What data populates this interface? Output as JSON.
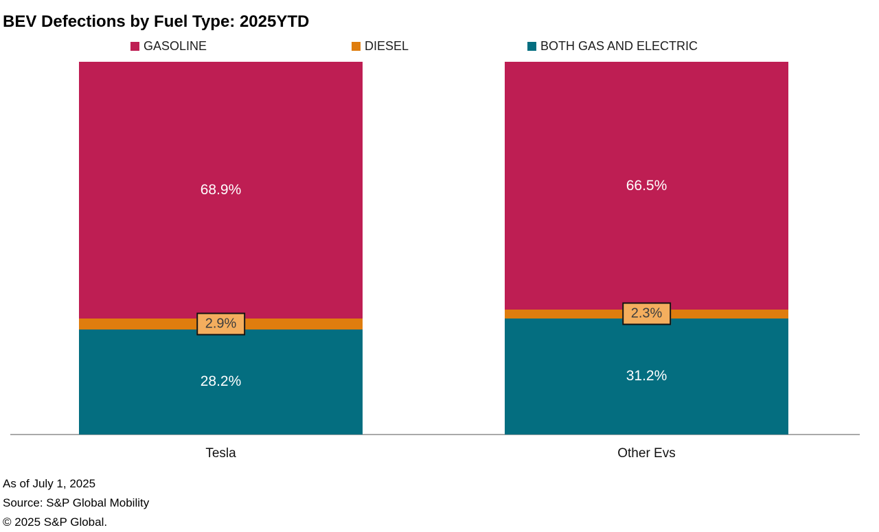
{
  "chart_data": {
    "type": "stacked-bar-percent",
    "title": "BEV Defections by Fuel Type: 2025YTD",
    "categories": [
      "Tesla",
      "Other Evs"
    ],
    "series": [
      {
        "name": "GASOLINE",
        "color": "#be1e53",
        "values": [
          68.9,
          66.5
        ],
        "label_style": "inline"
      },
      {
        "name": "DIESEL",
        "color": "#df7d0e",
        "values": [
          2.9,
          2.3
        ],
        "label_style": "boxed"
      },
      {
        "name": "BOTH GAS AND ELECTRIC",
        "color": "#046e80",
        "values": [
          28.2,
          31.2
        ],
        "label_style": "inline"
      }
    ],
    "value_suffix": "%",
    "ylim": [
      0,
      100
    ],
    "legend_position": "top",
    "grid": false,
    "colors": {
      "boxed_label_fill": "#f4ae5e",
      "boxed_label_border": "#111111",
      "axis_line": "#a9a9a9",
      "inline_label_text": "#ffffff"
    }
  },
  "footer": {
    "lines": [
      "As of July 1, 2025",
      "Source: S&P Global Mobility",
      "© 2025 S&P Global."
    ]
  }
}
